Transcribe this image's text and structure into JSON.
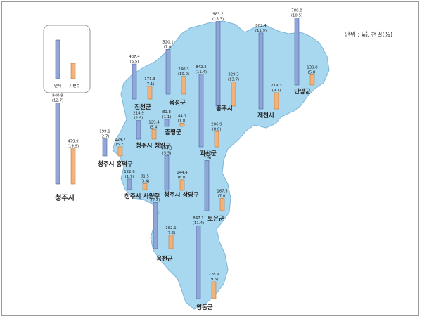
{
  "unit_label": "단위 : ㎢, 천필(%)",
  "colors": {
    "area_bar": "#8fa6d6",
    "area_bar_edge": "#4b64a0",
    "household_bar": "#f2b27b",
    "household_bar_edge": "#c07a3a",
    "map_fill": "#a8d8f0",
    "map_edge": "#7fb4d8"
  },
  "chart_data": {
    "type": "bar",
    "title": "",
    "series": [
      {
        "name": "면적",
        "unit": "㎢"
      },
      {
        "name": "자변수",
        "unit": "천필"
      }
    ],
    "regions": [
      {
        "name": "청주시",
        "area": 940.9,
        "area_pct": 12.7,
        "count": 479.9,
        "count_pct": 19.9
      },
      {
        "name": "청주시 흥덕구",
        "area": 199.1,
        "area_pct": 2.7,
        "count": 124.7,
        "count_pct": 5.2
      },
      {
        "name": "청주시 청원구",
        "area": 214.9,
        "area_pct": 2.9,
        "count": 129.4,
        "count_pct": 5.4
      },
      {
        "name": "청주시 서원구",
        "area": 122.6,
        "area_pct": 1.7,
        "count": 81.5,
        "count_pct": 3.4
      },
      {
        "name": "청주시 상당구",
        "area": 404.3,
        "area_pct": 5.5,
        "count": 144.4,
        "count_pct": 6.0
      },
      {
        "name": "진천군",
        "area": 407.4,
        "area_pct": 5.5,
        "count": 171.3,
        "count_pct": 7.1
      },
      {
        "name": "음성군",
        "area": 520.1,
        "area_pct": 7.0,
        "count": 240.3,
        "count_pct": 10.0
      },
      {
        "name": "증평군",
        "area": 81.8,
        "area_pct": 1.1,
        "count": 44.1,
        "count_pct": 1.8
      },
      {
        "name": "괴산군",
        "area": 842.2,
        "area_pct": 11.4,
        "count": 206.9,
        "count_pct": 8.6
      },
      {
        "name": "충주시",
        "area": 983.2,
        "area_pct": 13.3,
        "count": 329.3,
        "count_pct": 13.7
      },
      {
        "name": "제천시",
        "area": 882.4,
        "area_pct": 11.9,
        "count": 219.3,
        "count_pct": 9.1
      },
      {
        "name": "단양군",
        "area": 780.0,
        "area_pct": 10.5,
        "count": 139.8,
        "count_pct": 5.8
      },
      {
        "name": "보은군",
        "area": 584.3,
        "area_pct": 7.9,
        "count": 167.5,
        "count_pct": 7.0
      },
      {
        "name": "옥천군",
        "area": 537.4,
        "area_pct": 7.3,
        "count": 182.1,
        "count_pct": 7.6
      },
      {
        "name": "영동군",
        "area": 847.1,
        "area_pct": 11.4,
        "count": 228.9,
        "count_pct": 9.5
      }
    ]
  }
}
